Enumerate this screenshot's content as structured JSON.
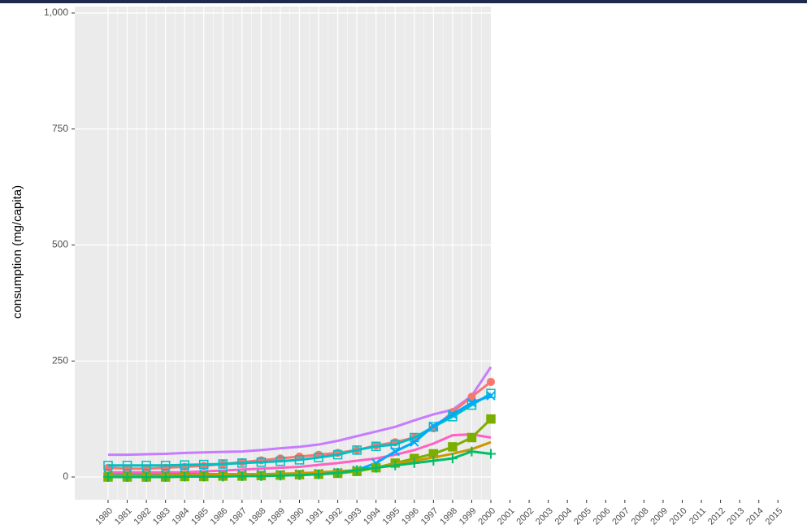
{
  "chart_data": {
    "type": "line",
    "ylabel": "consumption (mg/capita)",
    "categories": [
      "1980",
      "1981",
      "1982",
      "1983",
      "1984",
      "1985",
      "1986",
      "1987",
      "1988",
      "1989",
      "1990",
      "1991",
      "1992",
      "1993",
      "1994",
      "1995",
      "1996",
      "1997",
      "1998",
      "1999",
      "2000",
      "2001",
      "2002",
      "2003",
      "2004",
      "2005",
      "2006",
      "2007",
      "2008",
      "2009",
      "2010",
      "2011",
      "2012",
      "2013",
      "2014",
      "2015"
    ],
    "ylim": [
      -49,
      1014
    ],
    "yticks": [
      0,
      250,
      500,
      750,
      {
        "value": 1000,
        "label": "1,000"
      }
    ],
    "grid": true,
    "series": [
      {
        "color": "#c77cff",
        "marker": "none",
        "values": [
          48,
          48,
          49,
          50,
          52,
          53,
          54,
          55,
          58,
          62,
          65,
          70,
          78,
          88,
          98,
          108,
          122,
          135,
          145,
          175,
          237,
          null,
          null,
          null,
          null,
          null,
          null,
          null,
          null,
          null,
          null,
          null,
          null,
          null,
          null,
          null
        ]
      },
      {
        "color": "#ff61c3",
        "marker": "none",
        "values": [
          10,
          10,
          10,
          10,
          10,
          12,
          14,
          16,
          18,
          20,
          22,
          26,
          30,
          35,
          40,
          48,
          58,
          72,
          90,
          92,
          85,
          null,
          null,
          null,
          null,
          null,
          null,
          null,
          null,
          null,
          null,
          null,
          null,
          null,
          null,
          null
        ]
      },
      {
        "color": "#f8766d",
        "marker": "circle",
        "values": [
          20,
          18,
          18,
          20,
          22,
          24,
          28,
          32,
          36,
          40,
          44,
          48,
          52,
          58,
          68,
          75,
          85,
          105,
          140,
          173,
          205,
          null,
          null,
          null,
          null,
          null,
          null,
          null,
          null,
          null,
          null,
          null,
          null,
          null,
          null,
          null
        ]
      },
      {
        "color": "#00bfc4",
        "marker": "square",
        "values": [
          25,
          25,
          25,
          25,
          26,
          27,
          28,
          30,
          32,
          34,
          37,
          42,
          48,
          58,
          66,
          70,
          85,
          108,
          130,
          155,
          180,
          null,
          null,
          null,
          null,
          null,
          null,
          null,
          null,
          null,
          null,
          null,
          null,
          null,
          null,
          null
        ]
      },
      {
        "color": "#00a9ff",
        "marker": "x",
        "values": [
          5,
          5,
          5,
          5,
          6,
          6,
          6,
          6,
          6,
          6,
          7,
          8,
          10,
          15,
          30,
          55,
          75,
          110,
          135,
          160,
          175,
          null,
          null,
          null,
          null,
          null,
          null,
          null,
          null,
          null,
          null,
          null,
          null,
          null,
          null,
          null
        ]
      },
      {
        "color": "#7cae00",
        "marker": "square",
        "values": [
          0,
          0,
          0,
          0,
          1,
          1,
          2,
          2,
          3,
          4,
          5,
          6,
          8,
          12,
          20,
          30,
          40,
          50,
          65,
          85,
          125,
          null,
          null,
          null,
          null,
          null,
          null,
          null,
          null,
          null,
          null,
          null,
          null,
          null,
          null,
          null
        ]
      },
      {
        "color": "#cd9600",
        "marker": "none",
        "values": [
          3,
          3,
          3,
          4,
          4,
          4,
          5,
          5,
          6,
          7,
          8,
          10,
          12,
          15,
          20,
          28,
          35,
          42,
          50,
          60,
          75,
          null,
          null,
          null,
          null,
          null,
          null,
          null,
          null,
          null,
          null,
          null,
          null,
          null,
          null,
          null
        ]
      },
      {
        "color": "#00be67",
        "marker": "plus",
        "values": [
          0,
          0,
          0,
          0,
          1,
          1,
          1,
          2,
          2,
          3,
          4,
          6,
          9,
          15,
          20,
          25,
          30,
          35,
          40,
          55,
          50,
          null,
          null,
          null,
          null,
          null,
          null,
          null,
          null,
          null,
          null,
          null,
          null,
          null,
          null,
          null
        ]
      }
    ]
  }
}
